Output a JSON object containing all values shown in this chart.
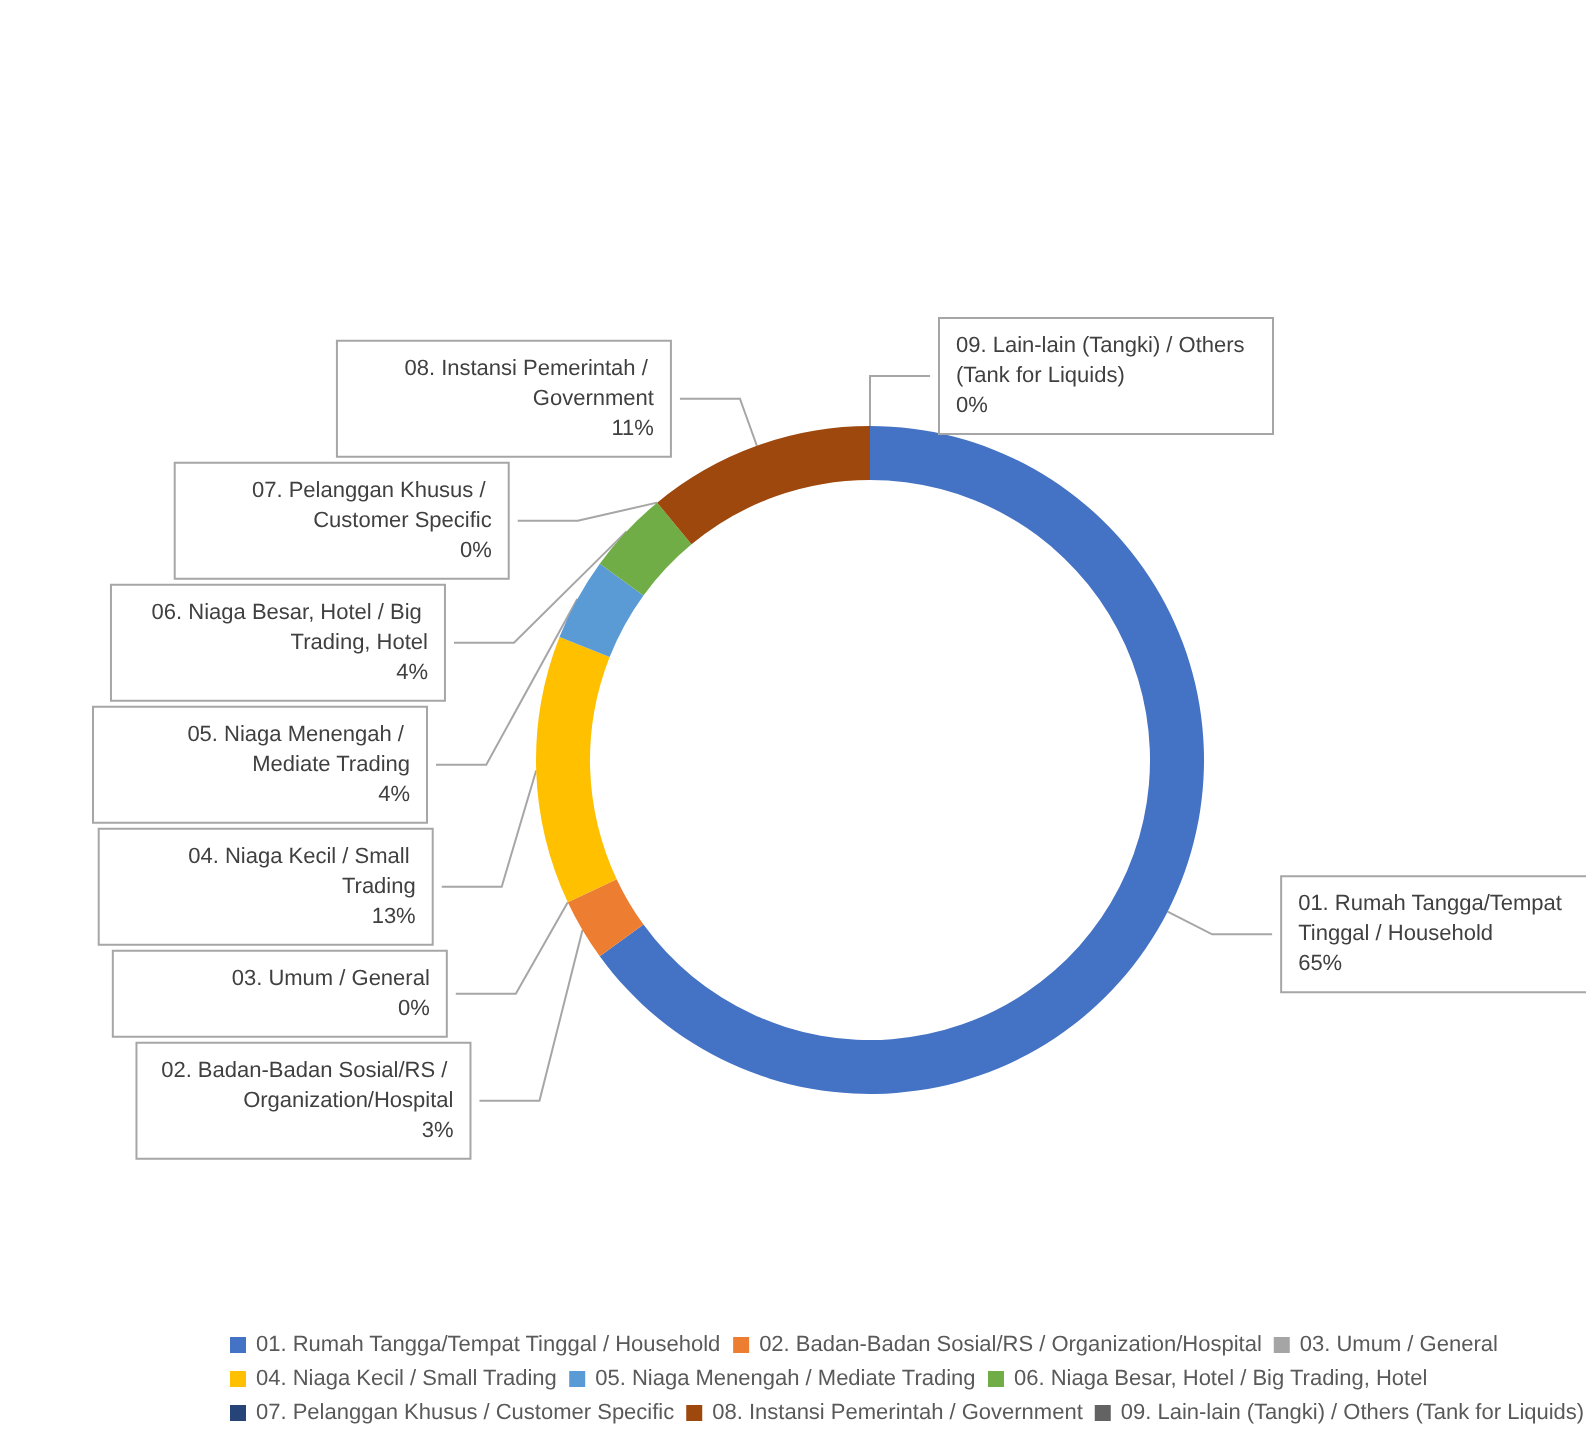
{
  "chart_data": {
    "type": "donut",
    "categories": [
      "01. Rumah Tangga/Tempat Tinggal / Household",
      "02. Badan-Badan Sosial/RS / Organization/Hospital",
      "03. Umum / General",
      "04. Niaga Kecil / Small Trading",
      "05. Niaga Menengah / Mediate Trading",
      "06. Niaga Besar, Hotel / Big Trading, Hotel",
      "07. Pelanggan Khusus / Customer Specific",
      "08. Instansi Pemerintah / Government",
      "09. Lain-lain (Tangki) / Others (Tank for Liquids)"
    ],
    "values": [
      65,
      3,
      0,
      13,
      4,
      4,
      0,
      11,
      0
    ],
    "value_labels": [
      "65%",
      "3%",
      "0%",
      "13%",
      "4%",
      "4%",
      "0%",
      "11%",
      "0%"
    ],
    "colors": [
      "#4472c4",
      "#ed7d31",
      "#a5a5a5",
      "#ffc000",
      "#5b9bd5",
      "#70ad47",
      "#264478",
      "#9e480e",
      "#636363"
    ],
    "legend": "bottom"
  }
}
